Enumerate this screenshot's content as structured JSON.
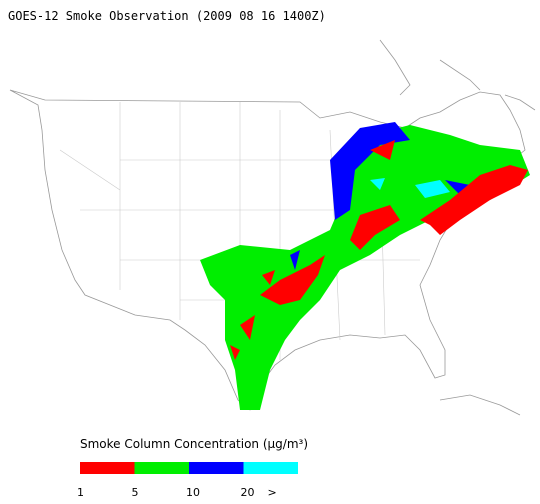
{
  "title": "GOES-12 Smoke Observation (2009 08 16  1400Z)",
  "legend": {
    "title": "Smoke Column Concentration (μg/m³)",
    "colors": [
      "#ff0000",
      "#00ee00",
      "#0000ff",
      "#00ffff"
    ],
    "labels": [
      "1",
      "5",
      "10",
      "20",
      ">"
    ]
  }
}
